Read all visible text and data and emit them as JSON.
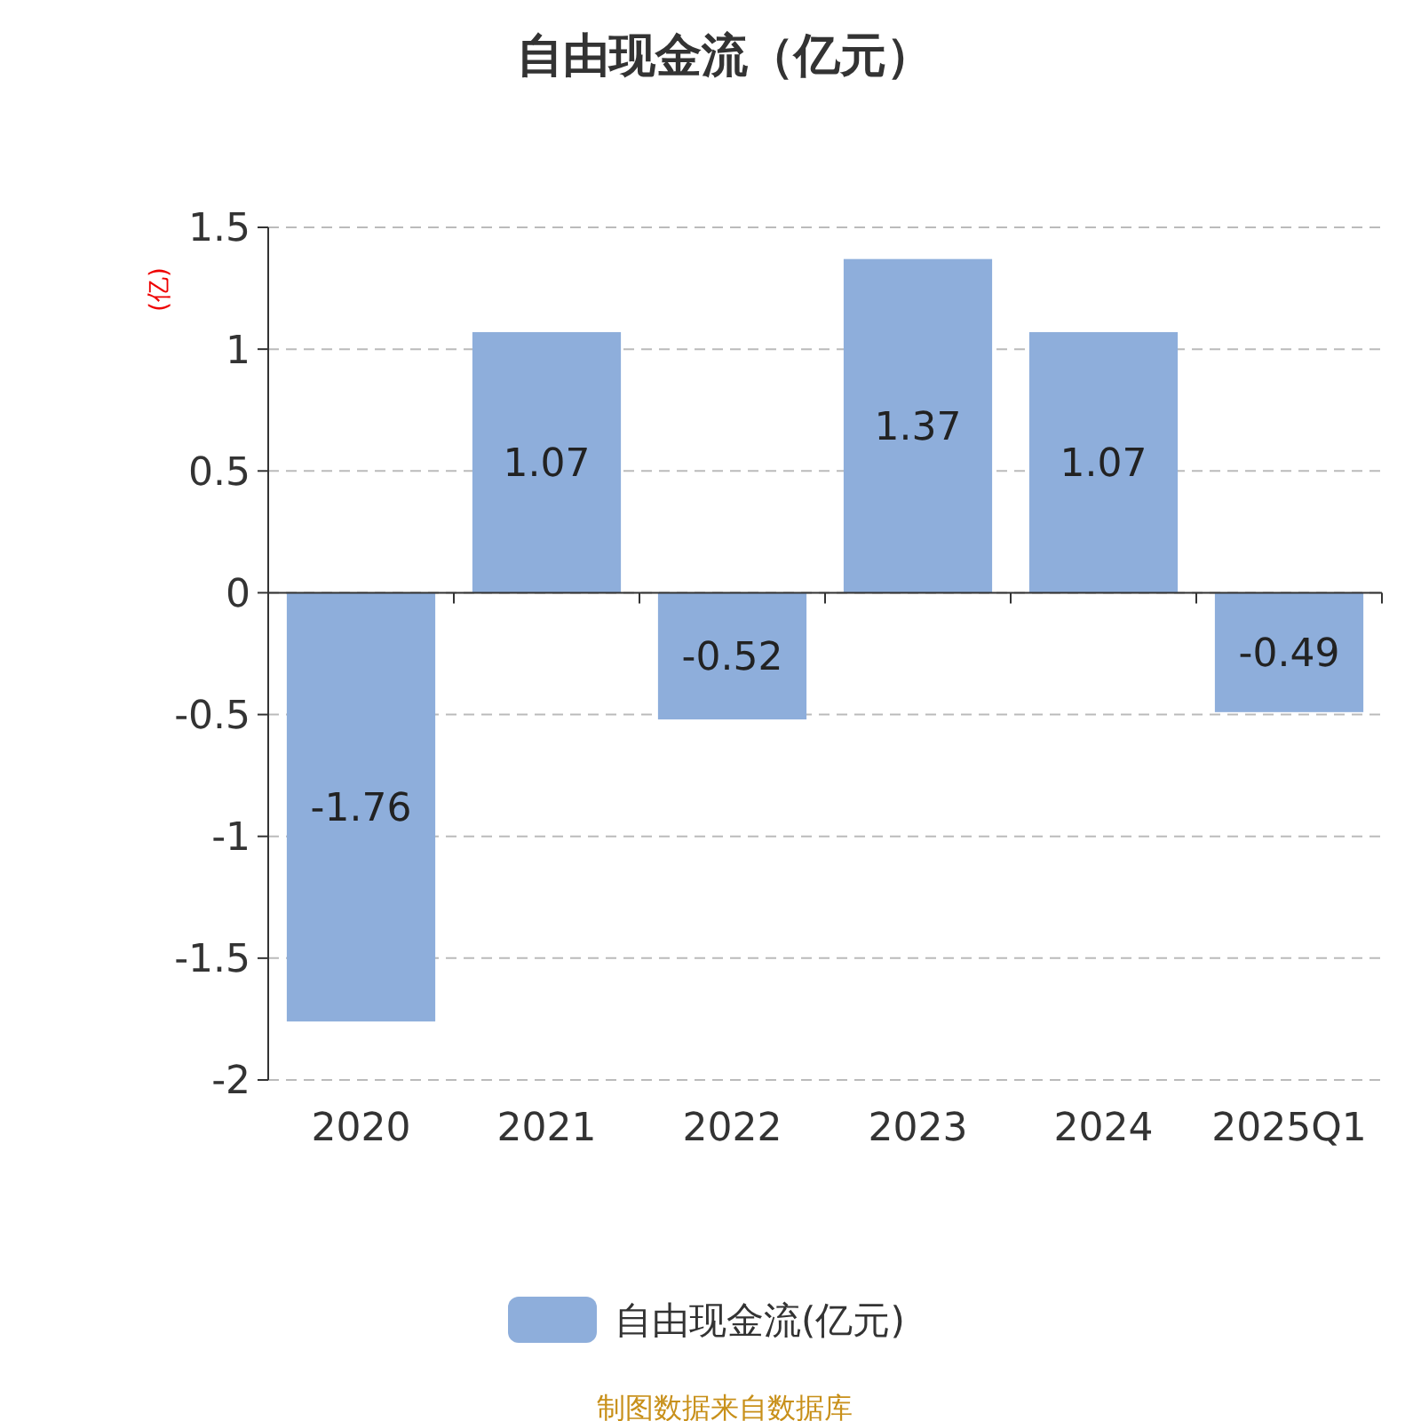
{
  "chart_data": {
    "type": "bar",
    "title": "自由现金流（亿元）",
    "ylabel": "(亿)",
    "categories": [
      "2020",
      "2021",
      "2022",
      "2023",
      "2024",
      "2025Q1"
    ],
    "series": [
      {
        "name": "自由现金流(亿元)",
        "color": "#8eaedb",
        "values": [
          -1.76,
          1.07,
          -0.52,
          1.37,
          1.07,
          -0.49
        ]
      }
    ],
    "ylim": [
      -2,
      1.5
    ],
    "yticks": [
      -2,
      {
        "value": -1.5,
        "label": "-1.5"
      },
      -1,
      {
        "value": -0.5,
        "label": "-0.5"
      },
      0,
      0.5,
      1,
      1.5
    ],
    "grid": "y",
    "legend": "bottom",
    "data_labels": true,
    "annotations": [
      "制图数据来自数据库"
    ]
  }
}
